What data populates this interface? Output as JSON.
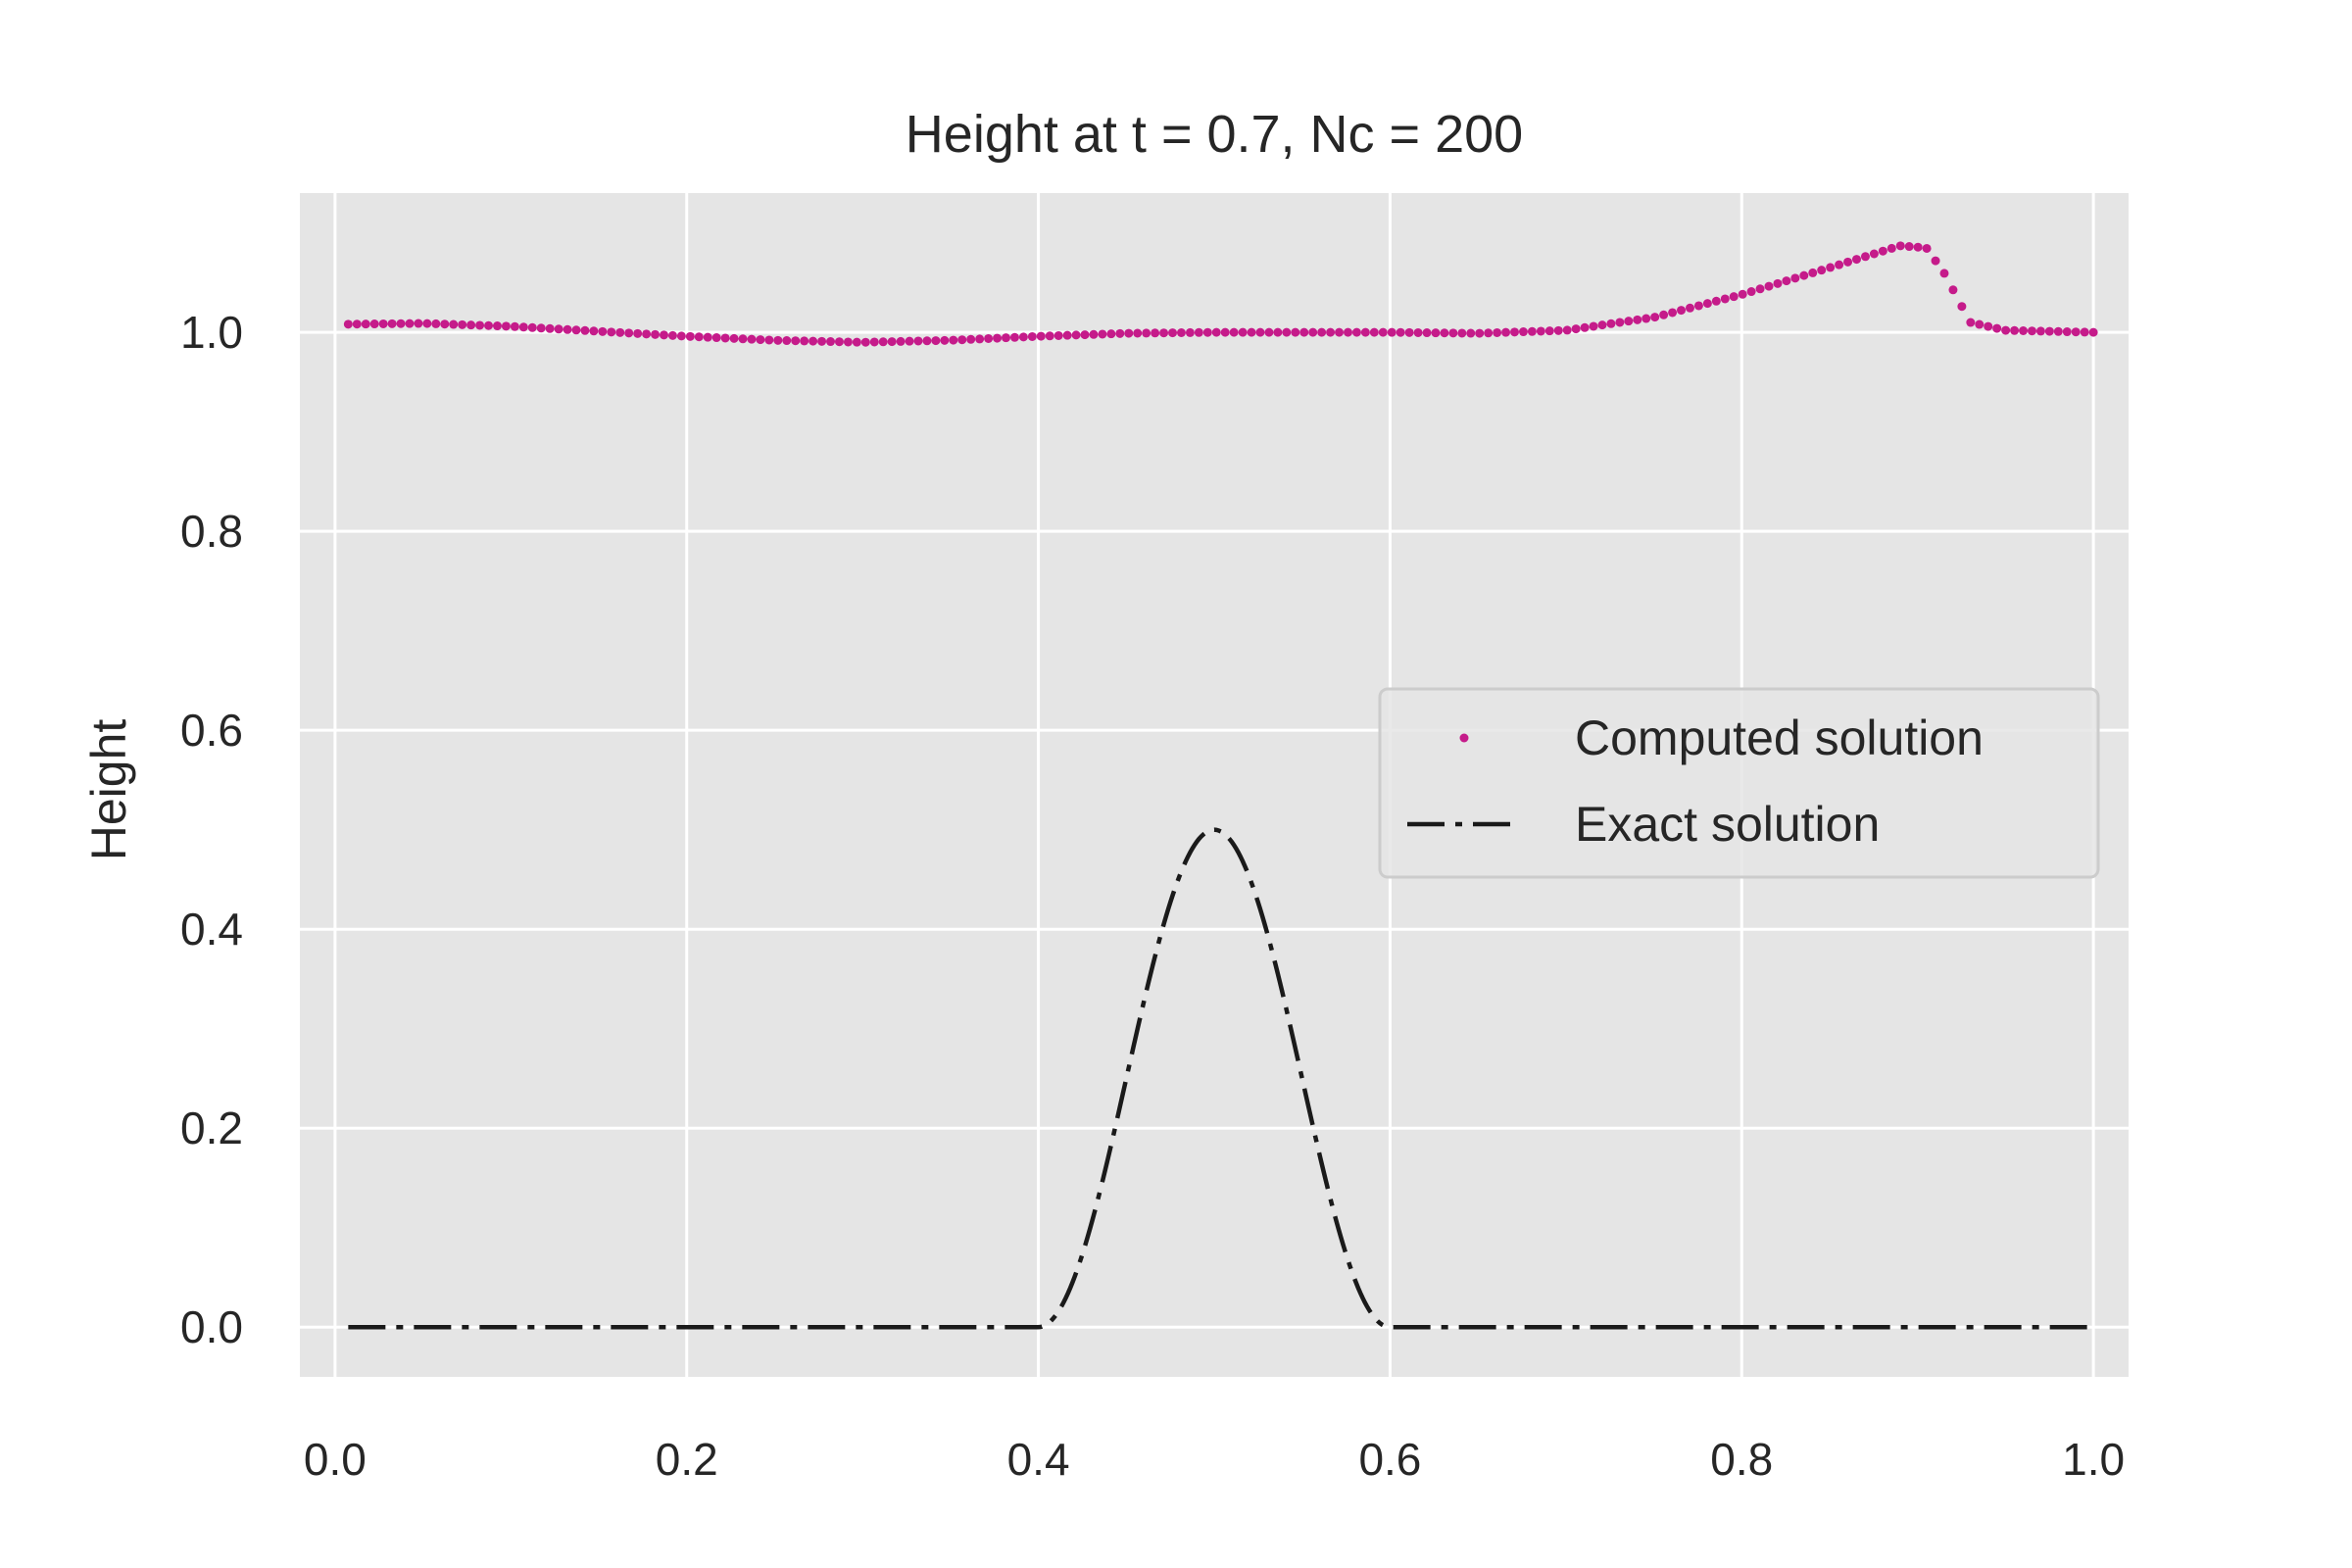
{
  "chart_data": {
    "type": "line",
    "title": "Height at t = 0.7, Nc = 200",
    "xlabel": "",
    "ylabel": "Height",
    "xlim": [
      -0.02,
      1.02
    ],
    "ylim": [
      -0.05,
      1.14
    ],
    "x_ticks": [
      0.0,
      0.2,
      0.4,
      0.6,
      0.8,
      1.0
    ],
    "x_tick_labels": [
      "0.0",
      "0.2",
      "0.4",
      "0.6",
      "0.8",
      "1.0"
    ],
    "y_ticks": [
      0.0,
      0.2,
      0.4,
      0.6,
      0.8,
      1.0
    ],
    "y_tick_labels": [
      "0.0",
      "0.2",
      "0.4",
      "0.6",
      "0.8",
      "1.0"
    ],
    "grid": true,
    "legend_position": "center-right",
    "colors": {
      "background": "#e5e5e5",
      "grid": "#ffffff",
      "computed": "#c51b8a",
      "exact": "#1a1a1a"
    },
    "series": [
      {
        "name": "Computed solution",
        "style": "dots",
        "n_points": 200,
        "x_start": 0.0075,
        "x_end": 1.0,
        "profile": [
          [
            0.0,
            1.008
          ],
          [
            0.05,
            1.009
          ],
          [
            0.1,
            1.006
          ],
          [
            0.15,
            1.001
          ],
          [
            0.2,
            0.996
          ],
          [
            0.25,
            0.992
          ],
          [
            0.3,
            0.99
          ],
          [
            0.35,
            0.992
          ],
          [
            0.4,
            0.996
          ],
          [
            0.45,
            0.999
          ],
          [
            0.5,
            1.0
          ],
          [
            0.55,
            1.0
          ],
          [
            0.6,
            1.0
          ],
          [
            0.65,
            0.999
          ],
          [
            0.7,
            1.002
          ],
          [
            0.75,
            1.015
          ],
          [
            0.8,
            1.038
          ],
          [
            0.85,
            1.065
          ],
          [
            0.89,
            1.087
          ],
          [
            0.905,
            1.085
          ],
          [
            0.915,
            1.06
          ],
          [
            0.93,
            1.01
          ],
          [
            0.95,
            1.002
          ],
          [
            1.0,
            1.0
          ]
        ]
      },
      {
        "name": "Exact solution",
        "style": "dashdot",
        "x_start": 0.0075,
        "x_end": 1.0,
        "bump": {
          "center": 0.5,
          "half_width": 0.1,
          "amplitude": 0.5
        }
      }
    ]
  }
}
